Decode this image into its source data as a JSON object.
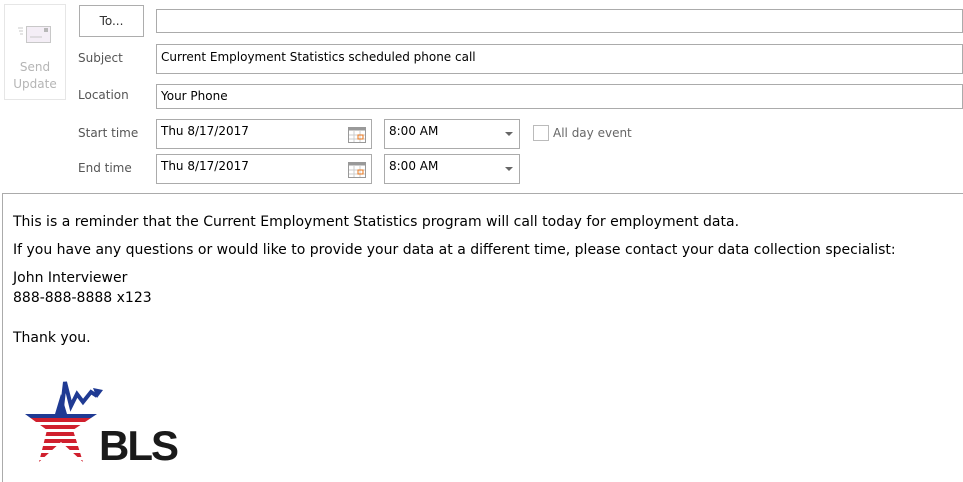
{
  "toolbar": {
    "send_update_line1": "Send",
    "send_update_line2": "Update"
  },
  "form": {
    "to_button": "To...",
    "to_value": "",
    "subject_label": "Subject",
    "subject_value": "Current Employment Statistics scheduled phone call",
    "location_label": "Location",
    "location_value": "Your Phone",
    "start_label": "Start time",
    "start_date": "Thu 8/17/2017",
    "start_time": "8:00 AM",
    "end_label": "End time",
    "end_date": "Thu 8/17/2017",
    "end_time": "8:00 AM",
    "all_day_label": "All day event",
    "all_day_checked": false
  },
  "body": {
    "line1": "This is a reminder that the Current Employment Statistics program will call today for employment data.",
    "line2": "If you have any questions or would like to provide your data at a different time, please contact your data collection specialist:",
    "contact_name": "John Interviewer",
    "contact_phone": "888-888-8888 x123",
    "closing": "Thank you.",
    "logo_text": "BLS"
  },
  "colors": {
    "logo_blue": "#1f3a93",
    "logo_red": "#d0202e",
    "logo_text": "#1a1a1a",
    "calendar_accent": "#e8761b"
  }
}
